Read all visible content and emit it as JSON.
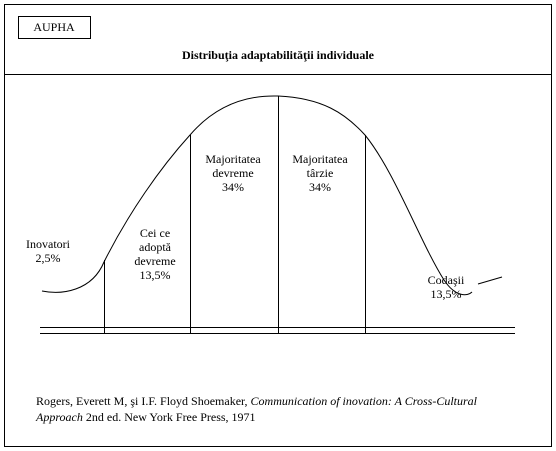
{
  "header": {
    "badge": "AUPHA",
    "title": "Distribuţia adaptabilităţii individuale"
  },
  "segments": [
    {
      "lines": [
        "Inovatori",
        "2,5%"
      ]
    },
    {
      "lines": [
        "Cei ce",
        "adoptă",
        "devreme",
        "13,5%"
      ]
    },
    {
      "lines": [
        "Majoritatea",
        "devreme",
        "34%"
      ]
    },
    {
      "lines": [
        "Majoritatea",
        "târzie",
        "34%"
      ]
    },
    {
      "lines": [
        "Codaşii",
        "13,5%"
      ]
    }
  ],
  "citation": {
    "parts": [
      {
        "text": "Rogers, Everett M,  şi I.F. Floyd Shoemaker, ",
        "italic": false
      },
      {
        "text": "Communication of inovation: A Cross-Cultural Approach",
        "italic": true
      },
      {
        "text": "  2nd ed. New York Free Press, 1971",
        "italic": false
      }
    ]
  }
}
